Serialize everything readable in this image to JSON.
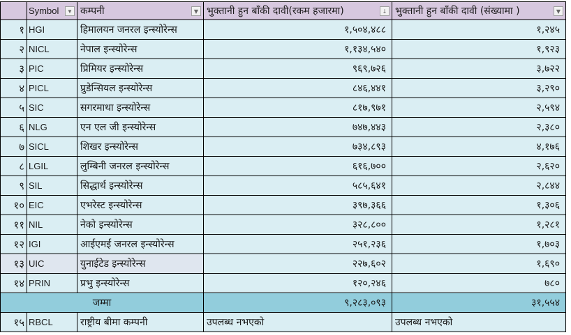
{
  "headers": {
    "symbol": "Symbol",
    "company": "कम्पनी",
    "amount": "भुक्तानी हुन बाँकी दावी(रकम हजारमा)",
    "count": "भुक्तानी हुन बाँकी दावी (संख्यामा )"
  },
  "icons": {
    "filter": "▼",
    "sort": "↓"
  },
  "rows": [
    {
      "n": "१",
      "sym": "HGI",
      "name": "हिमालयन जनरल इन्स्योरेन्स",
      "amt": "१,५०४,४८८",
      "cnt": "१,२४५"
    },
    {
      "n": "२",
      "sym": "NICL",
      "name": "नेपाल इन्स्योरेन्स",
      "amt": "१,१३४,५४०",
      "cnt": "१,९२३"
    },
    {
      "n": "३",
      "sym": "PIC",
      "name": "प्रिमियर इन्स्योरेन्स",
      "amt": "९६९,७२६",
      "cnt": "३,७२२"
    },
    {
      "n": "४",
      "sym": "PICL",
      "name": "प्रुडेन्सियल इन्स्योरेन्स",
      "amt": "८४६,४४१",
      "cnt": "३,२९०"
    },
    {
      "n": "५",
      "sym": "SIC",
      "name": "सगरमाथा इन्स्योरेन्स",
      "amt": "८१७,९७१",
      "cnt": "२,५९४"
    },
    {
      "n": "६",
      "sym": "NLG",
      "name": "एन एल जी इन्स्योरेन्स",
      "amt": "७४७,४४३",
      "cnt": "२,३८०"
    },
    {
      "n": "७",
      "sym": "SICL",
      "name": "शिखर इन्स्योरेन्स",
      "amt": "७३४,८९३",
      "cnt": "४,१७६"
    },
    {
      "n": "८",
      "sym": "LGIL",
      "name": "लुम्बिनी जनरल इन्स्योरेन्स",
      "amt": "६१६,७००",
      "cnt": "२,६२०"
    },
    {
      "n": "९",
      "sym": "SIL",
      "name": "सिद्धार्थ इन्स्योरेन्स",
      "amt": "५८५,६४१",
      "cnt": "२,८४४"
    },
    {
      "n": "१०",
      "sym": "EIC",
      "name": "एभरेस्ट इन्स्योरेन्स",
      "amt": "३९७,३६६",
      "cnt": "१,३०६"
    },
    {
      "n": "११",
      "sym": "NIL",
      "name": "नेको इन्स्योरेन्स",
      "amt": "३२८,८००",
      "cnt": "१,२८१"
    },
    {
      "n": "१२",
      "sym": "IGI",
      "name": "आईएमई जनरल इन्स्योरेन्स",
      "amt": "२५१,२३६",
      "cnt": "१,७०३"
    },
    {
      "n": "१३",
      "sym": "UIC",
      "name": "युनाईटेड इन्स्योरेन्स",
      "amt": "२२७,६०२",
      "cnt": "१,६९०"
    },
    {
      "n": "१४",
      "sym": "PRIN",
      "name": "प्रभु इन्स्योरेन्स",
      "amt": "१२०,२४६",
      "cnt": "७८०"
    }
  ],
  "total": {
    "label": "जम्मा",
    "amt": "९,२८३,०९३",
    "cnt": "३१,५५४"
  },
  "extra": {
    "n": "१५",
    "sym": "RBCL",
    "name": "राष्ट्रीय बीमा कम्पनी",
    "amt": "उपलब्ध नभएको",
    "cnt": "उपलब्ध नभएको"
  }
}
